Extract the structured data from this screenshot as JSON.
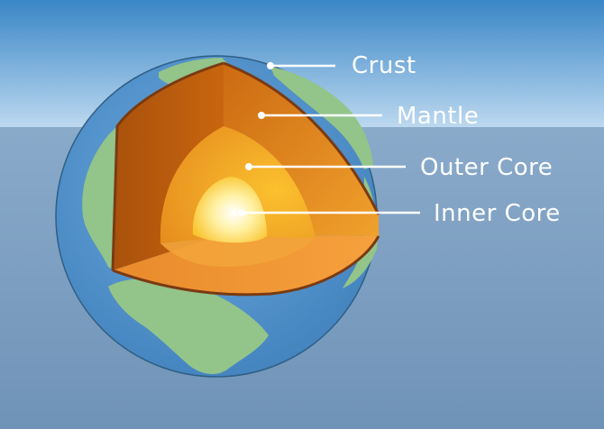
{
  "layers": {
    "crust": "Crust",
    "mantle": "Mantle",
    "outer_core": "Outer Core",
    "inner_core": "Inner Core"
  },
  "colors": {
    "sky_top": "#3b86c4",
    "sky_horizon": "#b9d6ee",
    "sea": "#7b9fc1",
    "ocean": "#4e8fcb",
    "land": "#93c48a",
    "mantle_dark": "#b85d10",
    "mantle_light": "#f4a33a",
    "outer_core": "#f9b830",
    "inner_core": "#fff7c8"
  }
}
